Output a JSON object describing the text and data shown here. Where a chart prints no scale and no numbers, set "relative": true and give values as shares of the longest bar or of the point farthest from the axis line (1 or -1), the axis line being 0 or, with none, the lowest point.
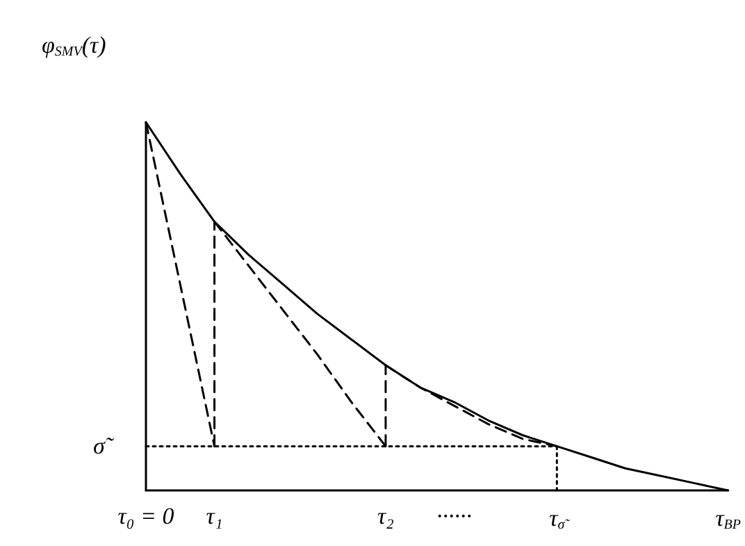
{
  "chart_data": {
    "type": "line",
    "relative": true,
    "ylabel": "φ$_{SMV}$(τ)",
    "marker": "none",
    "categories": [
      "τ₀ = 0",
      null,
      "τ₁",
      null,
      null,
      null,
      null,
      "τ₂",
      null,
      "······",
      null,
      null,
      "τ$_{σ̃}$",
      null,
      null,
      null,
      null,
      "τ$_{BP}$"
    ],
    "series": [
      {
        "color": "#000000",
        "line_style": "solid",
        "values": [
          1,
          0.86,
          0.73,
          0.64,
          0.56,
          0.48,
          0.41,
          0.34,
          0.28,
          0.24,
          0.19,
          0.15,
          0.12,
          0.09,
          0.06,
          0.04,
          0.02,
          0
        ]
      },
      {
        "color": "#000000",
        "line_style": "dashed",
        "values": [
          1,
          0.56,
          0.12,
          null,
          null,
          null,
          null,
          null,
          null,
          null,
          null,
          null,
          null,
          null,
          null,
          null,
          null,
          null
        ]
      },
      {
        "color": "#000000",
        "line_style": "dashed",
        "x": [
          "τ₁",
          "τ₁"
        ],
        "values": [
          0.12,
          0.73
        ]
      },
      {
        "color": "#000000",
        "line_style": "dashed",
        "values": [
          null,
          null,
          0.73,
          0.61,
          0.49,
          0.37,
          0.24,
          0.12,
          null,
          null,
          null,
          null,
          null,
          null,
          null,
          null,
          null,
          null
        ]
      },
      {
        "color": "#000000",
        "line_style": "dashed",
        "x": [
          "τ₂",
          "τ₂"
        ],
        "values": [
          0.12,
          0.34
        ]
      },
      {
        "color": "#000000",
        "line_style": "dashed",
        "values": [
          null,
          null,
          null,
          null,
          null,
          null,
          null,
          0.34,
          0.28,
          0.23,
          0.18,
          0.14,
          0.12,
          null,
          null,
          null,
          null,
          null
        ]
      },
      {
        "color": "#000000",
        "line_style": "dotted",
        "values": [
          0.12,
          0.12,
          0.12,
          0.12,
          0.12,
          0.12,
          0.12,
          0.12,
          0.12,
          0.12,
          0.12,
          0.12,
          0.12,
          null,
          null,
          null,
          null,
          null
        ]
      },
      {
        "color": "#000000",
        "line_style": "dotted",
        "x": [
          "τ$_{σ̃}$",
          "τ$_{σ̃}$"
        ],
        "values": [
          0.12,
          0
        ]
      }
    ],
    "annotations": [
      {
        "text": "σ̃",
        "x": "τ₀ = 0",
        "y": 0.12
      }
    ]
  }
}
